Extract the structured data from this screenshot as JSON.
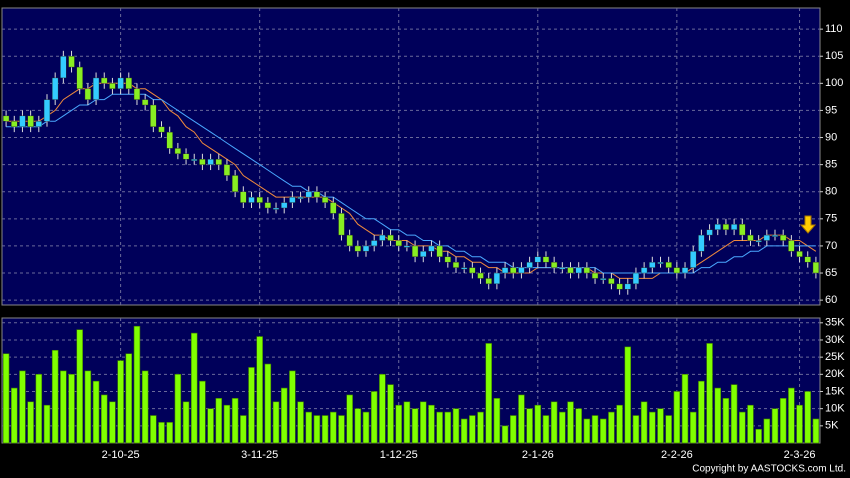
{
  "chart_data": {
    "type": "candlestick",
    "categories": [
      null,
      null,
      null,
      null,
      null,
      null,
      null,
      null,
      null,
      null,
      null,
      null,
      null,
      null,
      "2-10-25",
      null,
      null,
      null,
      null,
      null,
      null,
      null,
      null,
      null,
      null,
      null,
      null,
      null,
      null,
      null,
      null,
      "3-11-25",
      null,
      null,
      null,
      null,
      null,
      null,
      null,
      null,
      null,
      null,
      null,
      null,
      null,
      null,
      null,
      null,
      "1-12-25",
      null,
      null,
      null,
      null,
      null,
      null,
      null,
      null,
      null,
      null,
      null,
      null,
      null,
      null,
      null,
      null,
      "2-1-26",
      null,
      null,
      null,
      null,
      null,
      null,
      null,
      null,
      null,
      null,
      null,
      null,
      null,
      null,
      null,
      null,
      "2-2-26",
      null,
      null,
      null,
      null,
      null,
      null,
      null,
      null,
      null,
      null,
      null,
      null,
      null,
      null,
      "2-3-26",
      null,
      null
    ],
    "open": [
      94,
      93,
      92,
      94,
      92,
      93,
      97,
      101,
      105,
      103,
      99,
      97,
      101,
      100,
      99,
      101,
      99,
      97,
      96,
      92,
      91,
      88,
      87,
      86,
      86,
      85,
      86,
      85,
      83,
      80,
      78,
      79,
      78,
      77,
      77,
      78,
      79,
      79,
      80,
      79,
      78,
      76,
      72,
      70,
      69,
      70,
      71,
      72,
      71,
      70,
      70,
      68,
      69,
      70,
      68,
      67,
      66,
      66,
      65,
      64,
      63,
      65,
      66,
      65,
      66,
      67,
      68,
      67,
      66,
      66,
      65,
      66,
      65,
      64,
      64,
      63,
      62,
      63,
      65,
      66,
      67,
      67,
      66,
      65,
      66,
      69,
      72,
      73,
      74,
      73,
      74,
      72,
      71,
      71,
      72,
      72,
      71,
      69,
      68,
      67
    ],
    "high": [
      95,
      94,
      95,
      95,
      94,
      98,
      102,
      106,
      106,
      104,
      100,
      102,
      102,
      101,
      102,
      102,
      100,
      98,
      97,
      93,
      92,
      89,
      88,
      87,
      87,
      87,
      87,
      86,
      84,
      81,
      80,
      80,
      79,
      78,
      79,
      80,
      80,
      81,
      81,
      80,
      79,
      77,
      73,
      71,
      71,
      72,
      73,
      73,
      72,
      71,
      71,
      70,
      71,
      71,
      69,
      68,
      67,
      67,
      66,
      65,
      66,
      67,
      67,
      67,
      68,
      69,
      69,
      68,
      67,
      67,
      67,
      67,
      66,
      65,
      65,
      64,
      64,
      66,
      67,
      68,
      68,
      68,
      67,
      67,
      70,
      73,
      74,
      75,
      75,
      75,
      75,
      73,
      72,
      73,
      73,
      73,
      72,
      70,
      69,
      68
    ],
    "low": [
      92,
      91,
      91,
      91,
      91,
      92,
      96,
      100,
      102,
      98,
      96,
      96,
      99,
      98,
      98,
      98,
      96,
      95,
      91,
      90,
      87,
      86,
      85,
      85,
      84,
      84,
      84,
      82,
      79,
      77,
      77,
      77,
      76,
      76,
      76,
      77,
      78,
      78,
      78,
      77,
      75,
      71,
      69,
      68,
      68,
      69,
      70,
      70,
      69,
      69,
      67,
      67,
      68,
      67,
      66,
      65,
      65,
      64,
      63,
      62,
      62,
      64,
      64,
      64,
      65,
      66,
      66,
      65,
      65,
      64,
      64,
      64,
      63,
      63,
      62,
      61,
      61,
      62,
      64,
      65,
      66,
      65,
      64,
      64,
      65,
      68,
      71,
      72,
      72,
      72,
      71,
      70,
      70,
      70,
      71,
      70,
      68,
      67,
      66,
      64
    ],
    "close": [
      93,
      92,
      94,
      92,
      93,
      97,
      101,
      105,
      103,
      99,
      97,
      101,
      100,
      99,
      101,
      99,
      97,
      96,
      92,
      91,
      88,
      87,
      86,
      86,
      85,
      86,
      85,
      83,
      80,
      78,
      79,
      78,
      77,
      77,
      78,
      79,
      79,
      80,
      79,
      78,
      76,
      72,
      70,
      69,
      70,
      71,
      72,
      71,
      70,
      70,
      68,
      69,
      70,
      68,
      67,
      66,
      66,
      65,
      64,
      63,
      65,
      66,
      65,
      66,
      67,
      68,
      67,
      66,
      66,
      65,
      66,
      65,
      64,
      64,
      63,
      62,
      63,
      65,
      66,
      67,
      67,
      66,
      65,
      66,
      69,
      72,
      73,
      74,
      73,
      74,
      72,
      71,
      71,
      72,
      72,
      71,
      69,
      68,
      67,
      65
    ],
    "up_color": "#33ccff",
    "down_color": "#88ee22",
    "ma_lines": [
      {
        "color": "#f08a3c",
        "values": [
          93,
          93,
          93,
          93,
          93,
          94,
          95,
          97,
          98,
          99,
          99,
          100,
          100,
          100,
          100,
          100,
          99,
          99,
          98,
          97,
          95,
          94,
          92,
          91,
          89,
          88,
          87,
          86,
          85,
          83,
          82,
          81,
          80,
          79,
          79,
          79,
          79,
          79,
          79,
          79,
          78,
          77,
          76,
          74,
          73,
          72,
          72,
          71,
          71,
          71,
          70,
          70,
          70,
          69,
          69,
          68,
          68,
          67,
          67,
          66,
          66,
          65,
          65,
          65,
          65,
          66,
          66,
          66,
          66,
          66,
          66,
          66,
          65,
          65,
          65,
          64,
          64,
          64,
          64,
          64,
          65,
          65,
          65,
          65,
          66,
          67,
          68,
          69,
          70,
          71,
          71,
          71,
          71,
          72,
          72,
          72,
          71,
          71,
          70,
          69
        ]
      },
      {
        "color": "#4aa8ff",
        "values": [
          92,
          92,
          92,
          92,
          92,
          93,
          93,
          94,
          95,
          96,
          96,
          97,
          97,
          98,
          98,
          98,
          98,
          98,
          97,
          97,
          96,
          95,
          94,
          93,
          92,
          91,
          90,
          89,
          88,
          87,
          86,
          85,
          84,
          83,
          82,
          81,
          81,
          80,
          80,
          79,
          79,
          78,
          77,
          76,
          75,
          75,
          74,
          73,
          73,
          72,
          72,
          71,
          71,
          70,
          70,
          69,
          69,
          68,
          68,
          67,
          67,
          67,
          66,
          66,
          66,
          66,
          66,
          66,
          66,
          66,
          66,
          66,
          66,
          65,
          65,
          65,
          65,
          65,
          65,
          65,
          65,
          65,
          65,
          65,
          65,
          66,
          66,
          67,
          67,
          68,
          68,
          69,
          69,
          70,
          70,
          70,
          70,
          70,
          70,
          70
        ]
      }
    ],
    "ylim": [
      59.1,
      113.9
    ],
    "yticks": [
      60,
      65,
      70,
      75,
      80,
      85,
      90,
      95,
      100,
      105,
      110
    ],
    "grid": true,
    "volume": {
      "type": "bar",
      "color": "#80ff00",
      "values": [
        26000,
        16000,
        21000,
        12000,
        20000,
        11000,
        27000,
        21000,
        20000,
        33000,
        21000,
        18000,
        14000,
        12000,
        24000,
        26000,
        34000,
        21000,
        8000,
        6000,
        6000,
        20000,
        12000,
        32000,
        18000,
        10000,
        13000,
        11000,
        13000,
        8000,
        22000,
        31000,
        23000,
        12000,
        16000,
        21000,
        12000,
        9000,
        8000,
        8000,
        9000,
        8000,
        14000,
        10000,
        9000,
        15000,
        20000,
        17000,
        11000,
        12000,
        10000,
        12000,
        11000,
        9000,
        9000,
        10000,
        7000,
        8000,
        9000,
        29000,
        13000,
        5000,
        8000,
        14000,
        10000,
        11000,
        8000,
        12000,
        9000,
        12000,
        10000,
        7000,
        8000,
        7000,
        9000,
        11000,
        28000,
        8000,
        12000,
        9000,
        10000,
        8000,
        15000,
        20000,
        9000,
        18000,
        29000,
        16000,
        13000,
        17000,
        9000,
        11000,
        4000,
        7000,
        10000,
        13000,
        16000,
        11000,
        15000,
        7000
      ],
      "ylim": [
        0,
        36400
      ],
      "yticks": [
        {
          "value": 5000,
          "label": "5K"
        },
        {
          "value": 10000,
          "label": "10K"
        },
        {
          "value": 15000,
          "label": "15K"
        },
        {
          "value": 20000,
          "label": "20K"
        },
        {
          "value": 25000,
          "label": "25K"
        },
        {
          "value": 30000,
          "label": "30K"
        },
        {
          "value": 35000,
          "label": "35K"
        }
      ]
    }
  },
  "copyright": "Copyright by AASTOCKS.com Ltd."
}
